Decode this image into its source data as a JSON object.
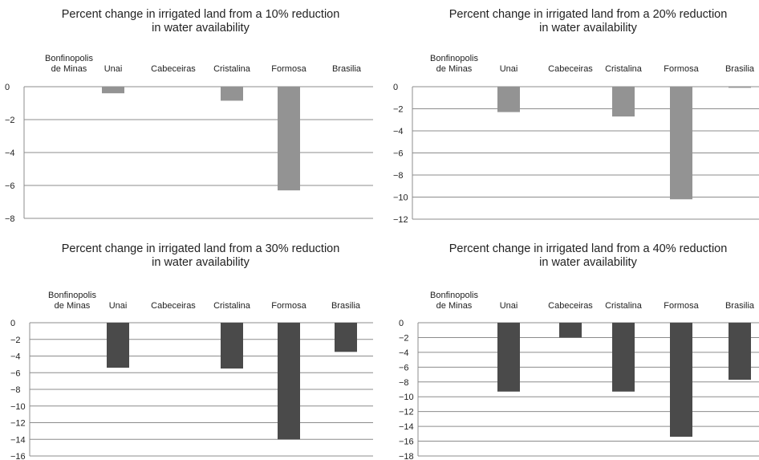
{
  "chart_data": [
    {
      "type": "bar",
      "title": "Percent change in irrigated land from a 10% reduction in water availability",
      "title_lines": [
        "Percent change in irrigated land from a 10% reduction",
        "in water availability"
      ],
      "categories": [
        "Bonfinopolis de Minas",
        "Unai",
        "Cabeceiras",
        "Cristalina",
        "Formosa",
        "Brasilia"
      ],
      "category_lines": [
        [
          "Bonfinopolis",
          "de Minas"
        ],
        [
          "Unai"
        ],
        [
          "Cabeceiras"
        ],
        [
          "Cristalina"
        ],
        [
          "Formosa"
        ],
        [
          "Brasilia"
        ]
      ],
      "values": [
        0,
        -0.4,
        0,
        -0.85,
        -6.3,
        0
      ],
      "ylim": [
        -8,
        0
      ],
      "yticks": [
        0,
        -2,
        -4,
        -6,
        -8
      ],
      "color": "#939393",
      "grid": true
    },
    {
      "type": "bar",
      "title": "Percent change in irrigated land from a 20% reduction in water availability",
      "title_lines": [
        "Percent change in irrigated land from a 20% reduction",
        "in water availability"
      ],
      "categories": [
        "Bonfinopolis de Minas",
        "Unai",
        "Cabeceiras",
        "Cristalina",
        "Formosa",
        "Brasilia"
      ],
      "category_lines": [
        [
          "Bonfinopolis",
          "de Minas"
        ],
        [
          "Unai"
        ],
        [
          "Cabeceiras"
        ],
        [
          "Cristalina"
        ],
        [
          "Formosa"
        ],
        [
          "Brasilia"
        ]
      ],
      "values": [
        0,
        -2.3,
        0,
        -2.7,
        -10.2,
        -0.1
      ],
      "ylim": [
        -12,
        0
      ],
      "yticks": [
        0,
        -2,
        -4,
        -6,
        -8,
        -10,
        -12
      ],
      "color": "#939393",
      "grid": true
    },
    {
      "type": "bar",
      "title": "Percent change in irrigated land from a 30% reduction in water availability",
      "title_lines": [
        "Percent change in irrigated land from a 30% reduction",
        "in water availability"
      ],
      "categories": [
        "Bonfinopolis de Minas",
        "Unai",
        "Cabeceiras",
        "Cristalina",
        "Formosa",
        "Brasilia"
      ],
      "category_lines": [
        [
          "Bonfinopolis",
          "de Minas"
        ],
        [
          "Unai"
        ],
        [
          "Cabeceiras"
        ],
        [
          "Cristalina"
        ],
        [
          "Formosa"
        ],
        [
          "Brasilia"
        ]
      ],
      "values": [
        0,
        -5.4,
        0,
        -5.5,
        -14,
        -3.5
      ],
      "ylim": [
        -16,
        0
      ],
      "yticks": [
        0,
        -2,
        -4,
        -6,
        -8,
        -10,
        -12,
        -14,
        -16
      ],
      "color": "#4a4a4a",
      "grid": true
    },
    {
      "type": "bar",
      "title": "Percent change in irrigated land from a 40% reduction in water availability",
      "title_lines": [
        "Percent change in irrigated land from a 40% reduction",
        "in water availability"
      ],
      "categories": [
        "Bonfinopolis de Minas",
        "Unai",
        "Cabeceiras",
        "Cristalina",
        "Formosa",
        "Brasilia"
      ],
      "category_lines": [
        [
          "Bonfinopolis",
          "de Minas"
        ],
        [
          "Unai"
        ],
        [
          "Cabeceiras"
        ],
        [
          "Cristalina"
        ],
        [
          "Formosa"
        ],
        [
          "Brasilia"
        ]
      ],
      "values": [
        0,
        -9.3,
        -2,
        -9.3,
        -15.4,
        -7.7
      ],
      "ylim": [
        -18,
        0
      ],
      "yticks": [
        0,
        -2,
        -4,
        -6,
        -8,
        -10,
        -12,
        -14,
        -16,
        -18
      ],
      "color": "#4a4a4a",
      "grid": true
    }
  ]
}
